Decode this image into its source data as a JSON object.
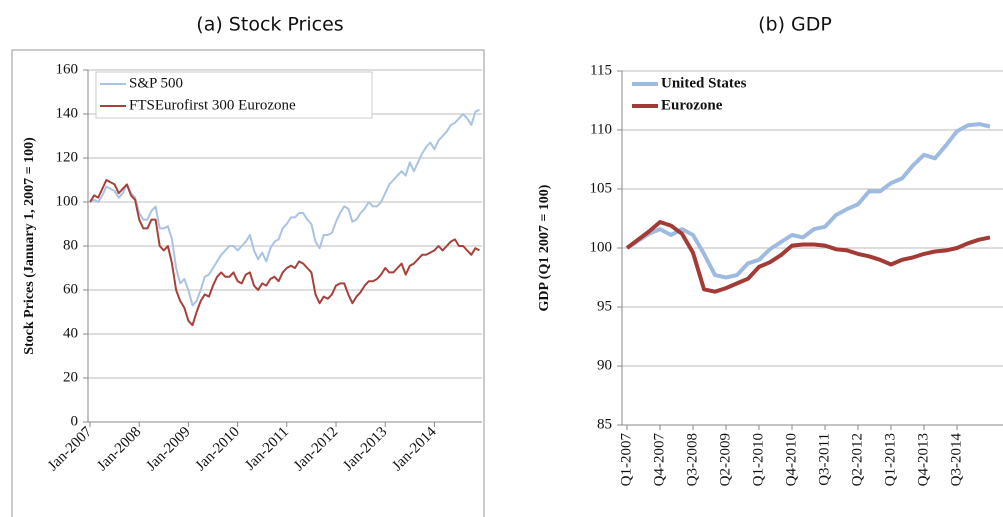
{
  "chart_data": [
    {
      "type": "line",
      "title": "(a) Stock Prices",
      "y_label": "Stock Prices (January 1, 2007 = 100)",
      "categories": [
        "Jan-2007",
        null,
        null,
        null,
        null,
        null,
        null,
        null,
        null,
        null,
        null,
        null,
        "Jan-2008",
        null,
        null,
        null,
        null,
        null,
        null,
        null,
        null,
        null,
        null,
        null,
        "Jan-2009",
        null,
        null,
        null,
        null,
        null,
        null,
        null,
        null,
        null,
        null,
        null,
        "Jan-2010",
        null,
        null,
        null,
        null,
        null,
        null,
        null,
        null,
        null,
        null,
        null,
        "Jan-2011",
        null,
        null,
        null,
        null,
        null,
        null,
        null,
        null,
        null,
        null,
        null,
        "Jan-2012",
        null,
        null,
        null,
        null,
        null,
        null,
        null,
        null,
        null,
        null,
        null,
        "Jan-2013",
        null,
        null,
        null,
        null,
        null,
        null,
        null,
        null,
        null,
        null,
        null,
        "Jan-2014",
        null,
        null,
        null,
        null,
        null,
        null,
        null,
        null,
        null,
        null,
        null
      ],
      "series": [
        {
          "name": "S&P 500",
          "color": "#a9c3e3",
          "values": [
            100,
            101,
            100,
            103,
            107,
            106,
            105,
            102,
            104,
            108,
            104,
            102,
            95,
            92,
            92,
            96,
            98,
            88,
            88,
            89,
            83,
            70,
            63,
            65,
            60,
            53,
            55,
            60,
            66,
            67,
            70,
            73,
            76,
            78,
            80,
            80,
            78,
            80,
            82,
            85,
            78,
            74,
            77,
            73,
            79,
            82,
            83,
            88,
            90,
            93,
            93,
            95,
            95,
            92,
            90,
            82,
            79,
            85,
            85,
            86,
            91,
            95,
            98,
            97,
            91,
            92,
            95,
            97,
            100,
            98,
            98,
            100,
            104,
            108,
            110,
            112,
            114,
            112,
            118,
            114,
            118,
            122,
            125,
            127,
            124,
            128,
            130,
            132,
            135,
            136,
            138,
            140,
            138,
            135,
            141,
            142
          ]
        },
        {
          "name": "FTSEurofirst 300 Eurozone",
          "color": "#a8403b",
          "values": [
            100,
            103,
            102,
            106,
            110,
            109,
            108,
            104,
            106,
            108,
            103,
            101,
            92,
            88,
            88,
            92,
            92,
            80,
            78,
            80,
            72,
            60,
            55,
            52,
            46,
            44,
            50,
            55,
            58,
            57,
            62,
            66,
            68,
            66,
            66,
            68,
            64,
            63,
            67,
            68,
            62,
            60,
            63,
            62,
            65,
            66,
            64,
            68,
            70,
            71,
            70,
            73,
            72,
            70,
            68,
            58,
            54,
            57,
            56,
            58,
            62,
            63,
            63,
            58,
            54,
            57,
            59,
            62,
            64,
            64,
            65,
            67,
            70,
            68,
            68,
            70,
            72,
            67,
            71,
            72,
            74,
            76,
            76,
            77,
            78,
            80,
            78,
            80,
            82,
            83,
            80,
            80,
            78,
            76,
            79,
            78
          ]
        }
      ],
      "ylim": [
        0,
        160
      ],
      "yticks": [
        0,
        20,
        40,
        60,
        80,
        100,
        120,
        140,
        160
      ],
      "grid": true,
      "legend": "top-left"
    },
    {
      "type": "line",
      "title": "(b) GDP",
      "y_label": "GDP (Q1 2007 = 100)",
      "categories": [
        "Q1-2007",
        null,
        null,
        "Q4-2007",
        null,
        null,
        "Q3-2008",
        null,
        null,
        "Q2-2009",
        null,
        null,
        "Q1-2010",
        null,
        null,
        "Q4-2010",
        null,
        null,
        "Q3-2011",
        null,
        null,
        "Q2-2012",
        null,
        null,
        "Q1-2013",
        null,
        null,
        "Q4-2013",
        null,
        null,
        "Q3-2014",
        null,
        null,
        null
      ],
      "series": [
        {
          "name": "United States",
          "color": "#9dbbe0",
          "values": [
            100,
            100.6,
            101.2,
            101.6,
            101.1,
            101.6,
            101.1,
            99.5,
            97.7,
            97.5,
            97.7,
            98.7,
            99.0,
            99.9,
            100.5,
            101.1,
            100.9,
            101.6,
            101.8,
            102.8,
            103.3,
            103.7,
            104.8,
            104.8,
            105.5,
            105.9,
            107.0,
            107.9,
            107.6,
            108.7,
            109.9,
            110.4,
            110.5,
            110.3
          ]
        },
        {
          "name": "Eurozone",
          "color": "#a33a35",
          "values": [
            100,
            100.7,
            101.4,
            102.2,
            101.9,
            101.2,
            99.6,
            96.5,
            96.3,
            96.6,
            97.0,
            97.4,
            98.4,
            98.8,
            99.4,
            100.2,
            100.3,
            100.3,
            100.2,
            99.9,
            99.8,
            99.5,
            99.3,
            99.0,
            98.6,
            99.0,
            99.2,
            99.5,
            99.7,
            99.8,
            100.0,
            100.4,
            100.7,
            100.9
          ]
        }
      ],
      "ylim": [
        85,
        115
      ],
      "yticks": [
        85,
        90,
        95,
        100,
        105,
        110,
        115
      ],
      "grid": true,
      "legend": "top-left"
    }
  ]
}
